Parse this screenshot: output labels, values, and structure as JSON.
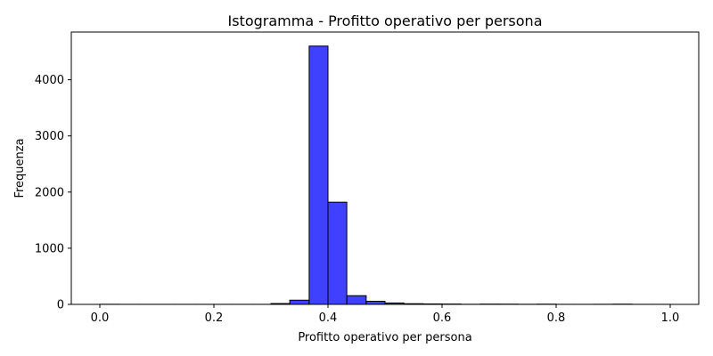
{
  "chart_data": {
    "type": "bar",
    "subtype": "histogram",
    "title": "Istogramma - Profitto operativo per persona",
    "xlabel": "Profitto operativo per persona",
    "ylabel": "Frequenza",
    "xlim": [
      -0.05,
      1.05
    ],
    "ylim": [
      0,
      4850
    ],
    "xticks": [
      0.0,
      0.2,
      0.4,
      0.6,
      0.8,
      1.0
    ],
    "xtick_labels": [
      "0.0",
      "0.2",
      "0.4",
      "0.6",
      "0.8",
      "1.0"
    ],
    "yticks": [
      0,
      1000,
      2000,
      3000,
      4000
    ],
    "ytick_labels": [
      "0",
      "1000",
      "2000",
      "3000",
      "4000"
    ],
    "grid": false,
    "bar_color": "#0000ff",
    "bar_opacity": 0.75,
    "edge_color": "#000000",
    "bins": [
      {
        "x0": 0.0,
        "x1": 0.033,
        "count": 2
      },
      {
        "x0": 0.033,
        "x1": 0.067,
        "count": 1
      },
      {
        "x0": 0.067,
        "x1": 0.1,
        "count": 1
      },
      {
        "x0": 0.1,
        "x1": 0.133,
        "count": 1
      },
      {
        "x0": 0.133,
        "x1": 0.167,
        "count": 1
      },
      {
        "x0": 0.167,
        "x1": 0.2,
        "count": 1
      },
      {
        "x0": 0.2,
        "x1": 0.233,
        "count": 1
      },
      {
        "x0": 0.233,
        "x1": 0.267,
        "count": 1
      },
      {
        "x0": 0.267,
        "x1": 0.3,
        "count": 1
      },
      {
        "x0": 0.3,
        "x1": 0.333,
        "count": 15
      },
      {
        "x0": 0.333,
        "x1": 0.367,
        "count": 75
      },
      {
        "x0": 0.367,
        "x1": 0.4,
        "count": 4600
      },
      {
        "x0": 0.4,
        "x1": 0.433,
        "count": 1820
      },
      {
        "x0": 0.433,
        "x1": 0.467,
        "count": 155
      },
      {
        "x0": 0.467,
        "x1": 0.5,
        "count": 55
      },
      {
        "x0": 0.5,
        "x1": 0.533,
        "count": 25
      },
      {
        "x0": 0.533,
        "x1": 0.567,
        "count": 12
      },
      {
        "x0": 0.567,
        "x1": 0.6,
        "count": 8
      },
      {
        "x0": 0.6,
        "x1": 0.633,
        "count": 6
      },
      {
        "x0": 0.633,
        "x1": 0.667,
        "count": 2
      },
      {
        "x0": 0.667,
        "x1": 0.7,
        "count": 5
      },
      {
        "x0": 0.7,
        "x1": 0.733,
        "count": 4
      },
      {
        "x0": 0.733,
        "x1": 0.767,
        "count": 2
      },
      {
        "x0": 0.767,
        "x1": 0.8,
        "count": 4
      },
      {
        "x0": 0.8,
        "x1": 0.833,
        "count": 1
      },
      {
        "x0": 0.833,
        "x1": 0.867,
        "count": 1
      },
      {
        "x0": 0.867,
        "x1": 0.9,
        "count": 2
      },
      {
        "x0": 0.9,
        "x1": 0.933,
        "count": 4
      },
      {
        "x0": 0.933,
        "x1": 0.967,
        "count": 1
      },
      {
        "x0": 0.967,
        "x1": 1.0,
        "count": 1
      }
    ]
  }
}
